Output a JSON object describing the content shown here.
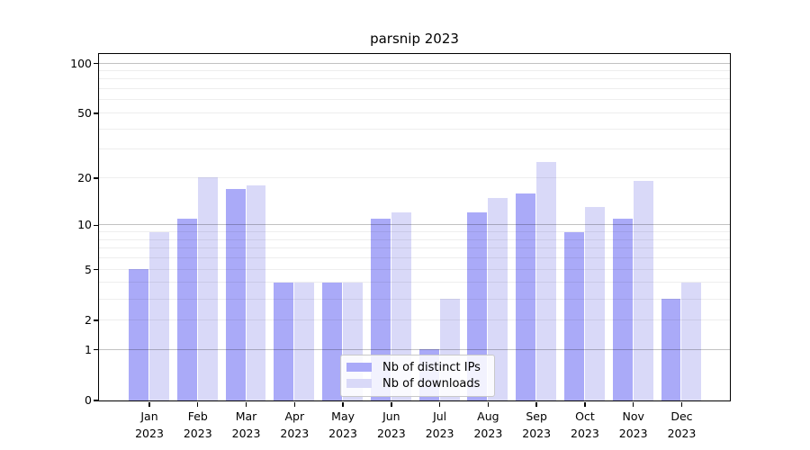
{
  "chart_data": {
    "type": "bar",
    "title": "parsnip 2023",
    "x_tick_year": "2023",
    "categories": [
      "Jan",
      "Feb",
      "Mar",
      "Apr",
      "May",
      "Jun",
      "Jul",
      "Aug",
      "Sep",
      "Oct",
      "Nov",
      "Dec"
    ],
    "series": [
      {
        "name": "Nb of distinct IPs",
        "color": "#aaaaf8",
        "values": [
          5,
          11,
          17,
          4,
          4,
          11,
          1,
          12,
          16,
          9,
          11,
          3
        ]
      },
      {
        "name": "Nb of downloads",
        "color": "#d9d9f8",
        "values": [
          9,
          20,
          18,
          4,
          4,
          12,
          3,
          15,
          25,
          13,
          19,
          4
        ]
      }
    ],
    "xlabel": "",
    "ylabel": "",
    "yscale": "log1p",
    "ylim": [
      0,
      113
    ],
    "yticks": [
      0,
      1,
      2,
      5,
      10,
      20,
      50,
      100
    ],
    "gridlines_major": [
      1,
      10,
      100
    ],
    "gridlines_minor": [
      2,
      3,
      4,
      5,
      6,
      7,
      8,
      9,
      20,
      30,
      40,
      50,
      60,
      70,
      80,
      90
    ],
    "grid": true,
    "legend": {
      "position": "lower center",
      "entries": [
        "Nb of distinct IPs",
        "Nb of downloads"
      ]
    }
  }
}
